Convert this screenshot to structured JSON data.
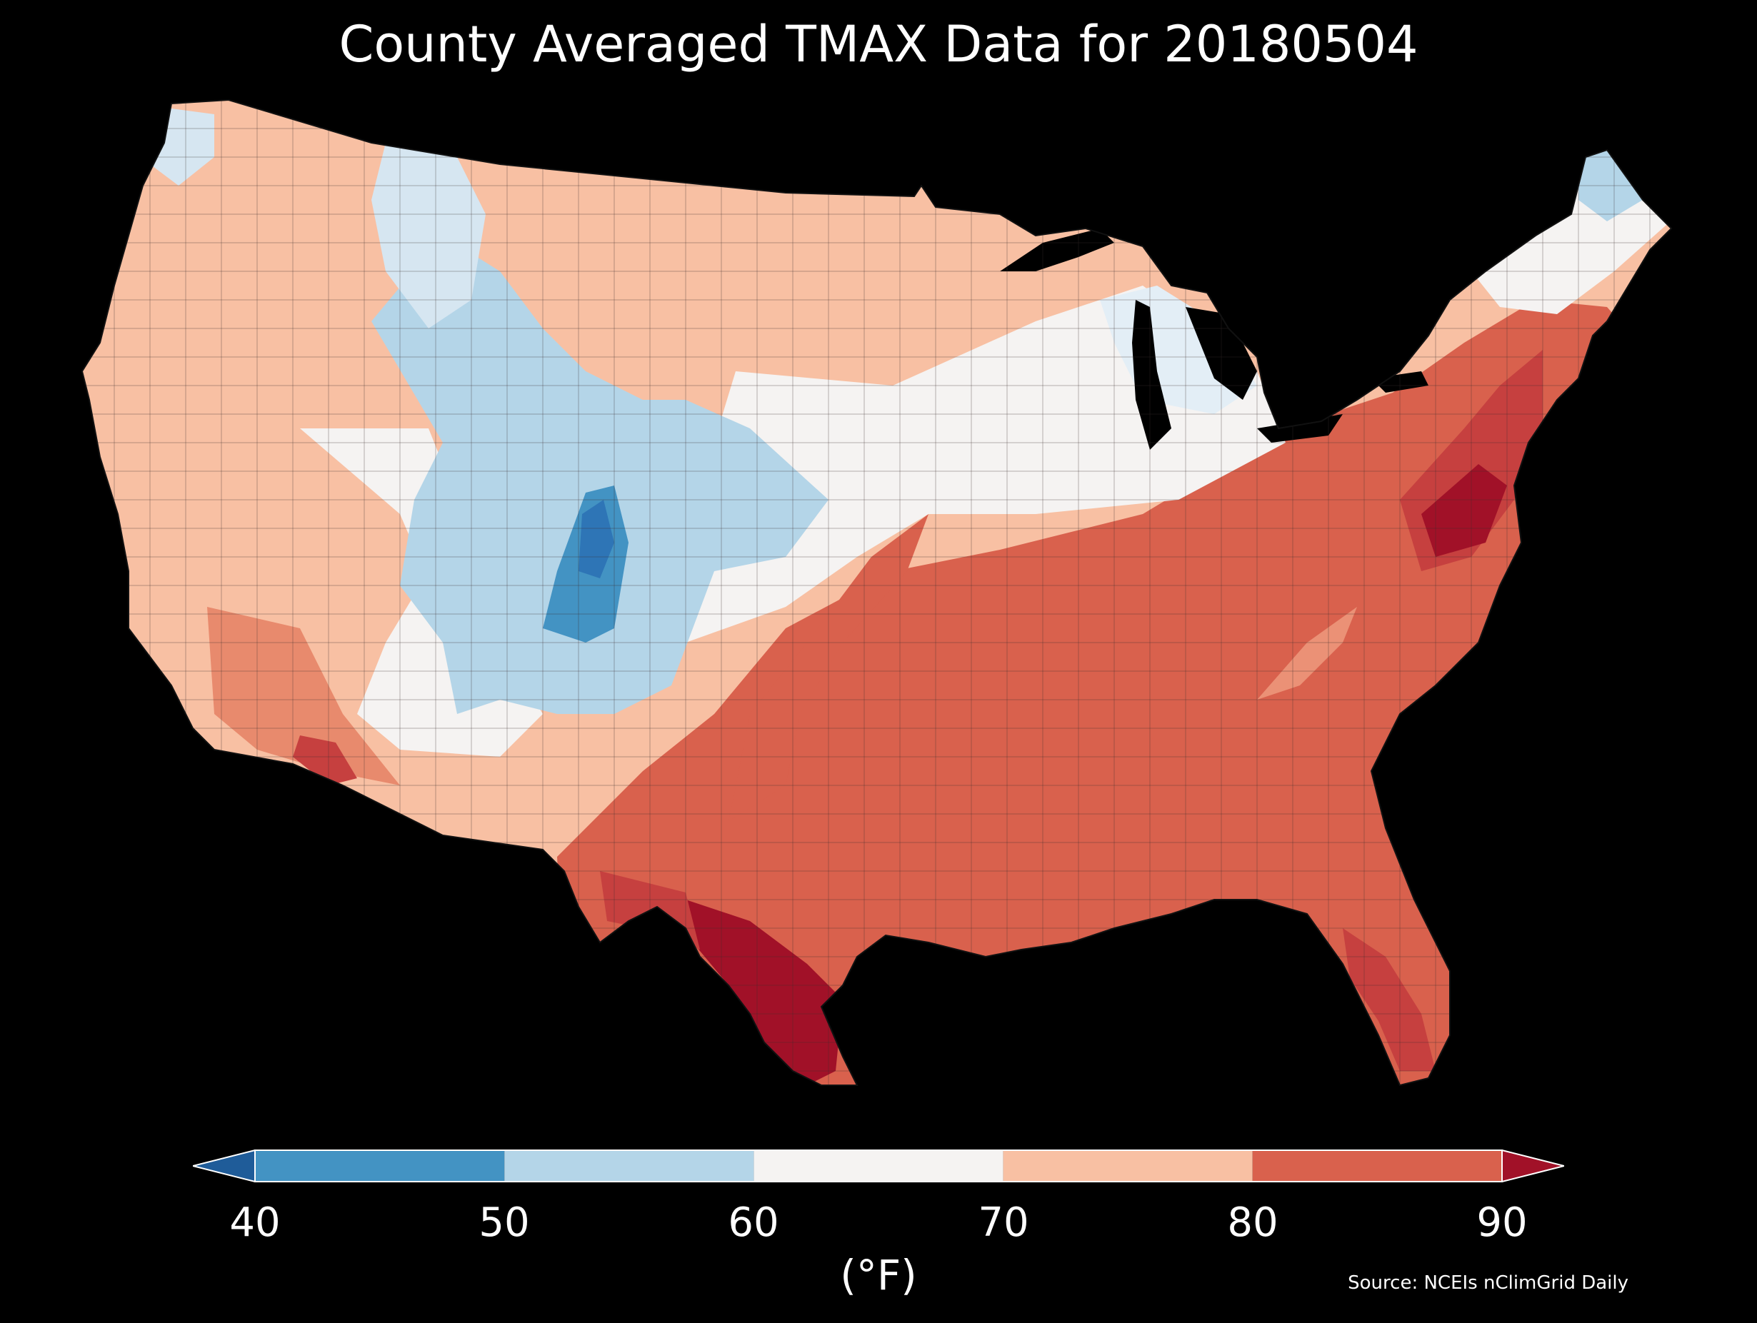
{
  "title": "County Averaged TMAX Data for 20180504",
  "colorbar": {
    "ticks": [
      "40",
      "50",
      "60",
      "70",
      "80",
      "90"
    ],
    "unit": "(°F)",
    "bins": [
      {
        "range": [
          40,
          50
        ],
        "color": "#4393c3"
      },
      {
        "range": [
          50,
          60
        ],
        "color": "#b4d5e8"
      },
      {
        "range": [
          60,
          70
        ],
        "color": "#f5f3f2"
      },
      {
        "range": [
          70,
          80
        ],
        "color": "#f8c0a3"
      },
      {
        "range": [
          80,
          90
        ],
        "color": "#d9614d"
      }
    ],
    "under_color": "#1f5c99",
    "over_color": "#a11128",
    "extend": "both"
  },
  "source": "Source: NCEIs nClimGrid Daily",
  "map": {
    "region": "contiguous-united-states",
    "subdivision": "counties",
    "variable": "TMAX",
    "ocean_color": "#000000",
    "border_color": "#222222",
    "highlights": [
      {
        "area": "south-texas",
        "band": "over-90"
      },
      {
        "area": "colorado-rockies",
        "band": "40-50"
      },
      {
        "area": "mid-atlantic",
        "band": "80-90"
      },
      {
        "area": "northern-maine",
        "band": "50-60"
      }
    ]
  }
}
